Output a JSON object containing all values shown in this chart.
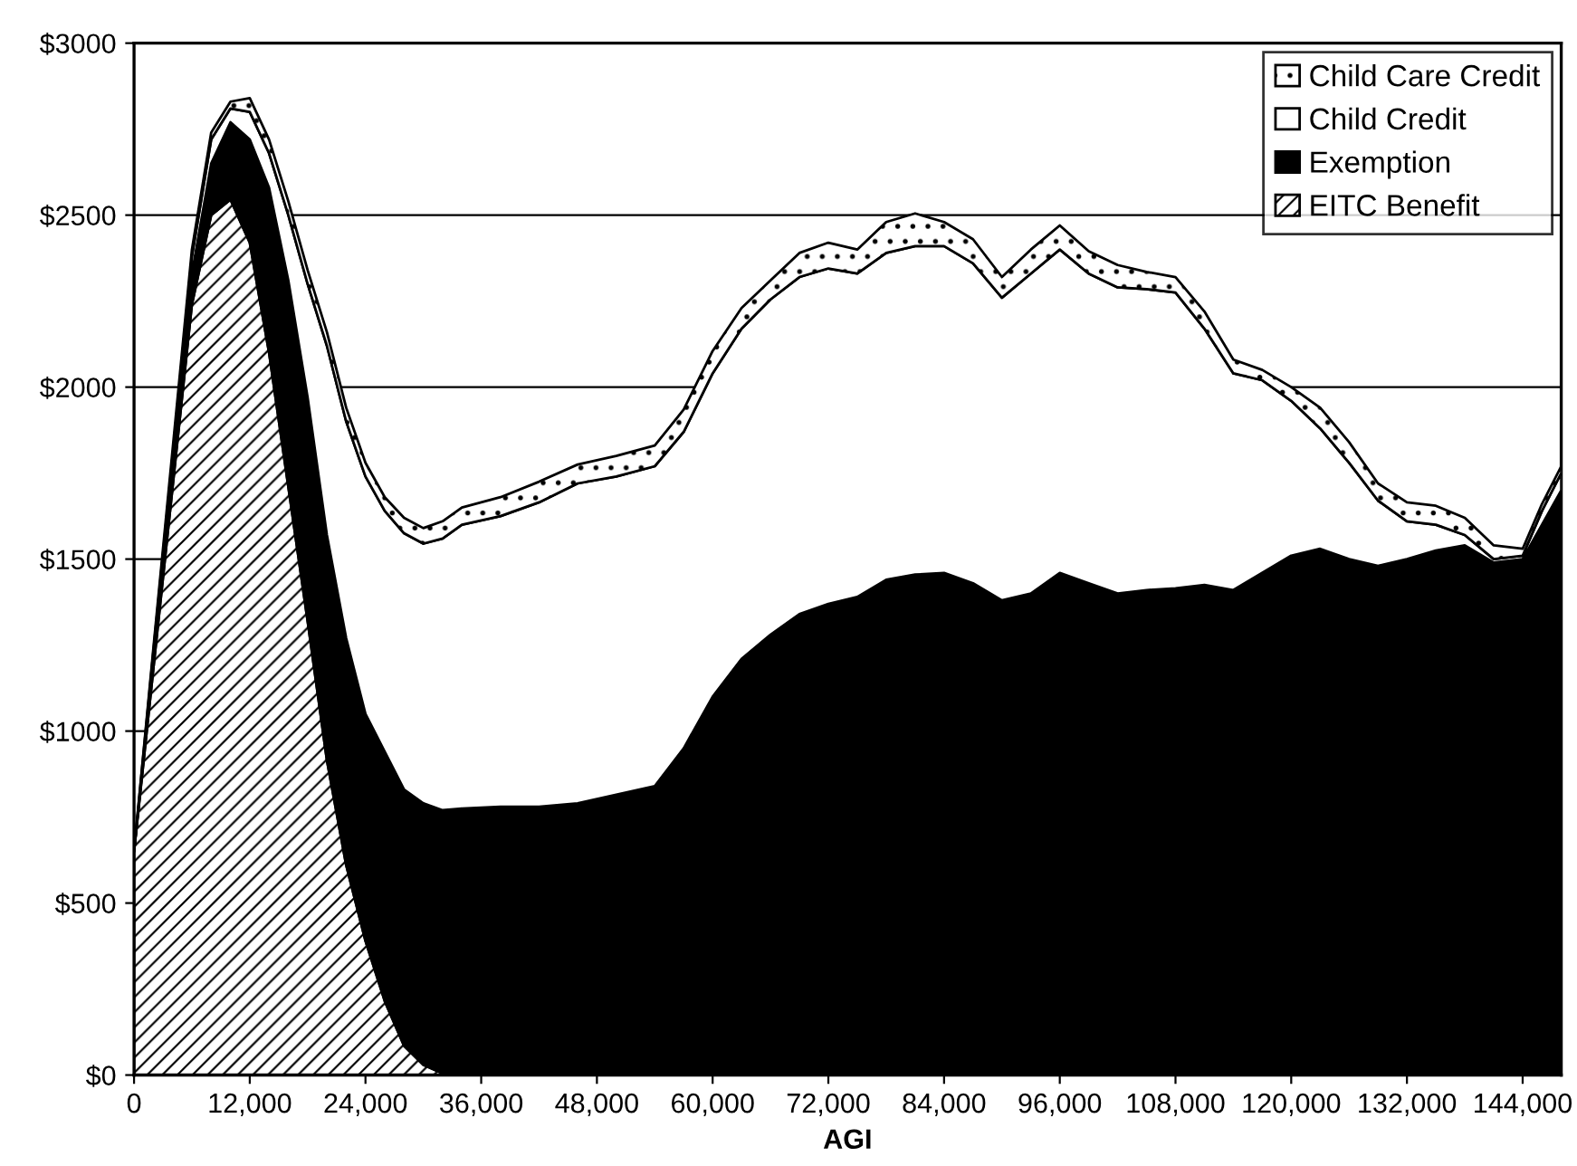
{
  "chart_data": {
    "type": "area",
    "stacked": true,
    "xlabel": "AGI",
    "x": [
      0,
      2000,
      4000,
      6000,
      8000,
      10000,
      12000,
      14000,
      16000,
      18000,
      20000,
      22000,
      24000,
      26000,
      28000,
      30000,
      32000,
      34000,
      38000,
      42000,
      46000,
      50000,
      54000,
      57000,
      60000,
      63000,
      66000,
      69000,
      72000,
      75000,
      78000,
      81000,
      84000,
      87000,
      90000,
      93000,
      96000,
      99000,
      102000,
      105000,
      108000,
      111000,
      114000,
      117000,
      120000,
      123000,
      126000,
      129000,
      132000,
      135000,
      138000,
      141000,
      144000,
      146000,
      148000
    ],
    "series": [
      {
        "name": "EITC Benefit",
        "color": "#000000",
        "values": [
          650,
          1180,
          1710,
          2240,
          2500,
          2545,
          2420,
          2100,
          1710,
          1320,
          915,
          610,
          390,
          215,
          85,
          30,
          5,
          0,
          0,
          0,
          0,
          0,
          0,
          0,
          0,
          0,
          0,
          0,
          0,
          0,
          0,
          0,
          0,
          0,
          0,
          0,
          0,
          0,
          0,
          0,
          0,
          0,
          0,
          0,
          0,
          0,
          0,
          0,
          0,
          0,
          0,
          0,
          0,
          0,
          0
        ]
      },
      {
        "name": "Exemption",
        "color": "#000000",
        "values": [
          0,
          20,
          50,
          90,
          150,
          225,
          300,
          480,
          600,
          650,
          655,
          660,
          660,
          725,
          745,
          760,
          765,
          775,
          780,
          780,
          790,
          815,
          840,
          950,
          1100,
          1210,
          1280,
          1340,
          1370,
          1390,
          1440,
          1455,
          1460,
          1430,
          1380,
          1400,
          1460,
          1430,
          1400,
          1410,
          1415,
          1425,
          1410,
          1460,
          1510,
          1530,
          1500,
          1480,
          1500,
          1525,
          1540,
          1490,
          1500,
          1600,
          1700
        ]
      },
      {
        "name": "Child Credit",
        "color": "#ffffff",
        "values": [
          0,
          30,
          40,
          50,
          70,
          40,
          80,
          100,
          190,
          330,
          550,
          630,
          690,
          700,
          745,
          755,
          790,
          825,
          845,
          885,
          930,
          925,
          930,
          920,
          940,
          960,
          975,
          980,
          975,
          940,
          950,
          955,
          950,
          930,
          880,
          930,
          940,
          900,
          890,
          875,
          860,
          745,
          630,
          560,
          450,
          350,
          280,
          190,
          110,
          75,
          30,
          10,
          10,
          40,
          50
        ]
      },
      {
        "name": "Child Care Credit",
        "color": "#000000",
        "values": [
          0,
          10,
          20,
          20,
          20,
          20,
          40,
          40,
          40,
          40,
          40,
          40,
          40,
          40,
          45,
          45,
          50,
          50,
          55,
          60,
          55,
          60,
          60,
          65,
          65,
          60,
          55,
          70,
          75,
          70,
          90,
          95,
          70,
          70,
          60,
          70,
          70,
          65,
          65,
          50,
          45,
          50,
          40,
          30,
          40,
          60,
          60,
          50,
          55,
          55,
          50,
          40,
          20,
          20,
          20
        ]
      }
    ],
    "xlim": [
      0,
      148000
    ],
    "xticks": [
      0,
      {
        "value": 12000,
        "label": "12,000"
      },
      {
        "value": 24000,
        "label": "24,000"
      },
      {
        "value": 36000,
        "label": "36,000"
      },
      {
        "value": 48000,
        "label": "48,000"
      },
      {
        "value": 60000,
        "label": "60,000"
      },
      {
        "value": 72000,
        "label": "72,000"
      },
      {
        "value": 84000,
        "label": "84,000"
      },
      {
        "value": 96000,
        "label": "96,000"
      },
      {
        "value": 108000,
        "label": "108,000"
      },
      {
        "value": 120000,
        "label": "120,000"
      },
      {
        "value": 132000,
        "label": "132,000"
      },
      {
        "value": 144000,
        "label": "144,000"
      }
    ],
    "ylim": [
      0,
      3000
    ],
    "yticks": [
      {
        "value": 0,
        "label": "$0"
      },
      {
        "value": 500,
        "label": "$500"
      },
      {
        "value": 1000,
        "label": "$1000"
      },
      {
        "value": 1500,
        "label": "$1500"
      },
      {
        "value": 2000,
        "label": "$2000"
      },
      {
        "value": 2500,
        "label": "$2500"
      },
      {
        "value": 3000,
        "label": "$3000"
      }
    ],
    "grid": "y",
    "legend": "top right"
  }
}
